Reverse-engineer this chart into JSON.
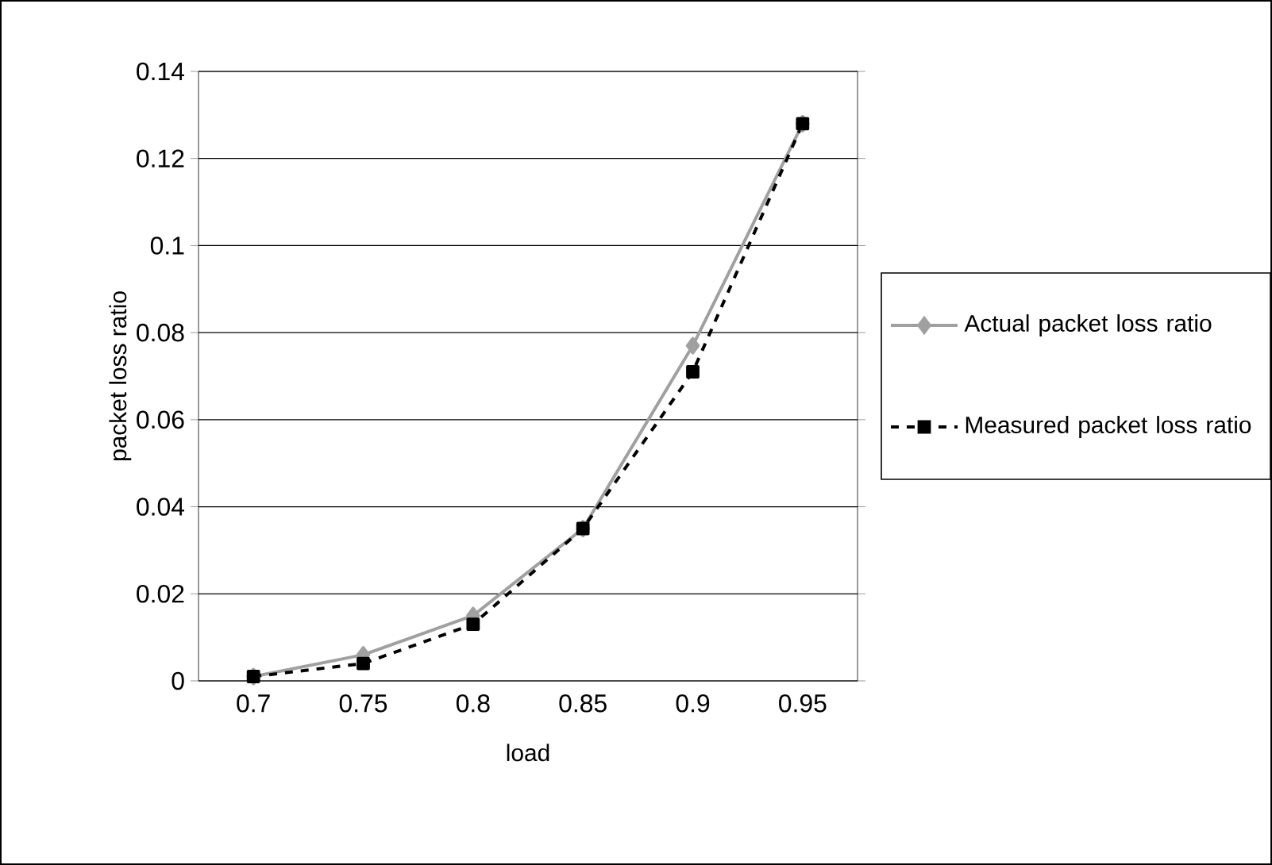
{
  "chart_data": {
    "type": "line",
    "xlabel": "load",
    "ylabel": "packet loss ratio",
    "categories": [
      "0.7",
      "0.75",
      "0.8",
      "0.85",
      "0.9",
      "0.95"
    ],
    "series": [
      {
        "name": "Actual packet loss ratio",
        "color": "#a0a0a0",
        "marker": "diamond",
        "line_style": "solid",
        "values": [
          0.001,
          0.006,
          0.015,
          0.035,
          0.077,
          0.128
        ]
      },
      {
        "name": "Measured packet loss ratio",
        "color": "#000000",
        "marker": "square",
        "line_style": "dashed",
        "values": [
          0.001,
          0.004,
          0.013,
          0.035,
          0.071,
          0.128
        ]
      }
    ],
    "ylim": [
      0,
      0.14
    ],
    "yticks": [
      0,
      0.02,
      0.04,
      0.06,
      0.08,
      0.1,
      0.12,
      0.14
    ],
    "grid": "y",
    "legend": "right"
  }
}
